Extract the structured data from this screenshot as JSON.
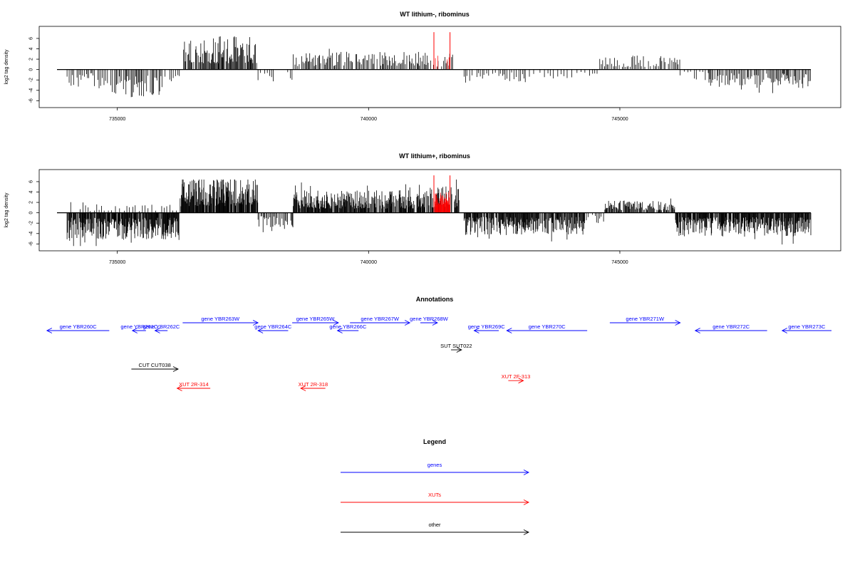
{
  "chart_data": [
    {
      "type": "bar",
      "title": "WT lithium-, ribominus",
      "ylabel": "log2 tag density",
      "xlim": [
        733800,
        748800
      ],
      "ylim": [
        -6.5,
        7.5
      ],
      "x_ticks": [
        735000,
        740000,
        745000
      ],
      "x_tick_labels": [
        "735000",
        "740000",
        "745000"
      ],
      "y_ticks": [
        -6,
        -4,
        -2,
        0,
        2,
        4,
        6
      ],
      "y_tick_labels": [
        "-6",
        "-4",
        "-2",
        "0",
        "2",
        "4",
        "6"
      ],
      "baseline": 0,
      "colors": {
        "signal": "#000000",
        "highlight": "#ff0000"
      },
      "segments": [
        {
          "start": 734000,
          "end": 734900,
          "strand": "minus",
          "amp": 2.8,
          "step": 30,
          "mult": 1
        },
        {
          "start": 734900,
          "end": 735900,
          "strand": "minus",
          "amp": 4.0,
          "step": 22,
          "mult": 1
        },
        {
          "start": 735950,
          "end": 736250,
          "strand": "minus",
          "amp": 1.8,
          "step": 40,
          "mult": 1
        },
        {
          "start": 736300,
          "end": 737800,
          "strand": "plus",
          "amp": 4.8,
          "step": 14,
          "mult": 1
        },
        {
          "start": 737800,
          "end": 738500,
          "strand": "minus",
          "amp": 1.8,
          "step": 45,
          "mult": 1
        },
        {
          "start": 738500,
          "end": 741200,
          "strand": "plus",
          "amp": 2.6,
          "step": 22,
          "mult": 1
        },
        {
          "start": 741200,
          "end": 741700,
          "strand": "plus",
          "amp": 2.3,
          "step": 30,
          "mult": 1
        },
        {
          "start": 741900,
          "end": 743200,
          "strand": "minus",
          "amp": 2.2,
          "step": 40,
          "mult": 1
        },
        {
          "start": 743200,
          "end": 744600,
          "strand": "minus",
          "amp": 1.4,
          "step": 70,
          "mult": 1
        },
        {
          "start": 744600,
          "end": 746200,
          "strand": "plus",
          "amp": 2.0,
          "step": 30,
          "mult": 1
        },
        {
          "start": 746200,
          "end": 746700,
          "strand": "minus",
          "amp": 1.5,
          "step": 60,
          "mult": 1
        },
        {
          "start": 746700,
          "end": 748800,
          "strand": "minus",
          "amp": 2.6,
          "step": 22,
          "mult": 1
        }
      ],
      "highlights": [
        {
          "x": 741300,
          "y": 7.2
        },
        {
          "x": 741620,
          "y": 7.2
        }
      ]
    },
    {
      "type": "bar",
      "title": "WT lithium+, ribominus",
      "ylabel": "log2 tag density",
      "xlim": [
        733800,
        748800
      ],
      "ylim": [
        -6.5,
        7.5
      ],
      "x_ticks": [
        735000,
        740000,
        745000
      ],
      "x_tick_labels": [
        "735000",
        "740000",
        "745000"
      ],
      "y_ticks": [
        -6,
        -4,
        -2,
        0,
        2,
        4,
        6
      ],
      "y_tick_labels": [
        "-6",
        "-4",
        "-2",
        "0",
        "2",
        "4",
        "6"
      ],
      "baseline": 0,
      "colors": {
        "signal": "#000000",
        "highlight": "#ff0000"
      },
      "segments": [
        {
          "start": 734000,
          "end": 736250,
          "strand": "minus",
          "amp": 3.8,
          "step": 9,
          "mult": 1
        },
        {
          "start": 734000,
          "end": 736250,
          "strand": "plus",
          "amp": 1.2,
          "step": 60,
          "mult": 1
        },
        {
          "start": 736250,
          "end": 737800,
          "strand": "plus",
          "amp": 5.0,
          "step": 8,
          "mult": 1
        },
        {
          "start": 737800,
          "end": 738500,
          "strand": "minus",
          "amp": 2.5,
          "step": 20,
          "mult": 1
        },
        {
          "start": 738500,
          "end": 741200,
          "strand": "plus",
          "amp": 3.2,
          "step": 9,
          "mult": 1
        },
        {
          "start": 741200,
          "end": 741800,
          "strand": "plus",
          "amp": 4.0,
          "step": 12,
          "mult": 1
        },
        {
          "start": 741900,
          "end": 744300,
          "strand": "minus",
          "amp": 3.2,
          "step": 10,
          "mult": 1
        },
        {
          "start": 744300,
          "end": 744700,
          "strand": "minus",
          "amp": 1.5,
          "step": 40,
          "mult": 1
        },
        {
          "start": 744700,
          "end": 746100,
          "strand": "plus",
          "amp": 1.8,
          "step": 14,
          "mult": 1
        },
        {
          "start": 746100,
          "end": 748800,
          "strand": "minus",
          "amp": 3.4,
          "step": 9,
          "mult": 1
        }
      ],
      "highlights": [
        {
          "x": 741300,
          "y": 7.2
        },
        {
          "x": 741620,
          "y": 7.2
        }
      ]
    },
    {
      "type": "diagram",
      "title": "Annotations",
      "xlim": [
        733800,
        748800
      ],
      "colors": {
        "gene": "#0000ff",
        "xut": "#ff0000",
        "other": "#000000"
      },
      "features": [
        {
          "label": "gene YBR260C",
          "kind": "gene",
          "dir": "left",
          "x1": 733600,
          "x2": 734840,
          "row": 0
        },
        {
          "label": "gene YBR261C",
          "kind": "gene",
          "dir": "left",
          "x1": 735300,
          "x2": 735570,
          "row": 0
        },
        {
          "label": "gene YBR262C",
          "kind": "gene",
          "dir": "left",
          "x1": 735750,
          "x2": 736000,
          "row": 0
        },
        {
          "label": "gene YBR263W",
          "kind": "gene",
          "dir": "right",
          "x1": 736300,
          "x2": 737800,
          "row": -1
        },
        {
          "label": "gene YBR264C",
          "kind": "gene",
          "dir": "left",
          "x1": 737800,
          "x2": 738400,
          "row": 0
        },
        {
          "label": "gene YBR265W",
          "kind": "gene",
          "dir": "right",
          "x1": 738480,
          "x2": 739400,
          "row": -1
        },
        {
          "label": "gene YBR266C",
          "kind": "gene",
          "dir": "left",
          "x1": 739380,
          "x2": 739800,
          "row": 0
        },
        {
          "label": "gene YBR267W",
          "kind": "gene",
          "dir": "right",
          "x1": 739630,
          "x2": 740820,
          "row": -1
        },
        {
          "label": "gene YBR268W",
          "kind": "gene",
          "dir": "right",
          "x1": 741030,
          "x2": 741370,
          "row": -1
        },
        {
          "label": "gene YBR269C",
          "kind": "gene",
          "dir": "left",
          "x1": 742100,
          "x2": 742590,
          "row": 0
        },
        {
          "label": "gene YBR270C",
          "kind": "gene",
          "dir": "left",
          "x1": 742750,
          "x2": 744350,
          "row": 0
        },
        {
          "label": "gene YBR271W",
          "kind": "gene",
          "dir": "right",
          "x1": 744800,
          "x2": 746200,
          "row": -1
        },
        {
          "label": "gene YBR272C",
          "kind": "gene",
          "dir": "left",
          "x1": 746500,
          "x2": 747930,
          "row": 0
        },
        {
          "label": "gene YBR273C",
          "kind": "gene",
          "dir": "left",
          "x1": 748230,
          "x2": 749600,
          "row": 0
        },
        {
          "label": "SUT SUT022",
          "kind": "other",
          "dir": "right",
          "x1": 741640,
          "x2": 741850,
          "row": 1
        },
        {
          "label": "CUT CUT038",
          "kind": "other",
          "dir": "right",
          "x1": 735280,
          "x2": 736210,
          "row": 2
        },
        {
          "label": "XUT 2R-314",
          "kind": "xut",
          "dir": "left",
          "x1": 736190,
          "x2": 736850,
          "row": 3
        },
        {
          "label": "XUT 2R-318",
          "kind": "xut",
          "dir": "left",
          "x1": 738650,
          "x2": 739140,
          "row": 3
        },
        {
          "label": "XUT 2F-313",
          "kind": "xut",
          "dir": "right",
          "x1": 742780,
          "x2": 743080,
          "row": 2.6
        }
      ]
    },
    {
      "type": "legend",
      "title": "Legend",
      "entries": [
        {
          "label": "genes",
          "color": "#0000ff"
        },
        {
          "label": "XUTs",
          "color": "#ff0000"
        },
        {
          "label": "other",
          "color": "#000000"
        }
      ]
    }
  ]
}
